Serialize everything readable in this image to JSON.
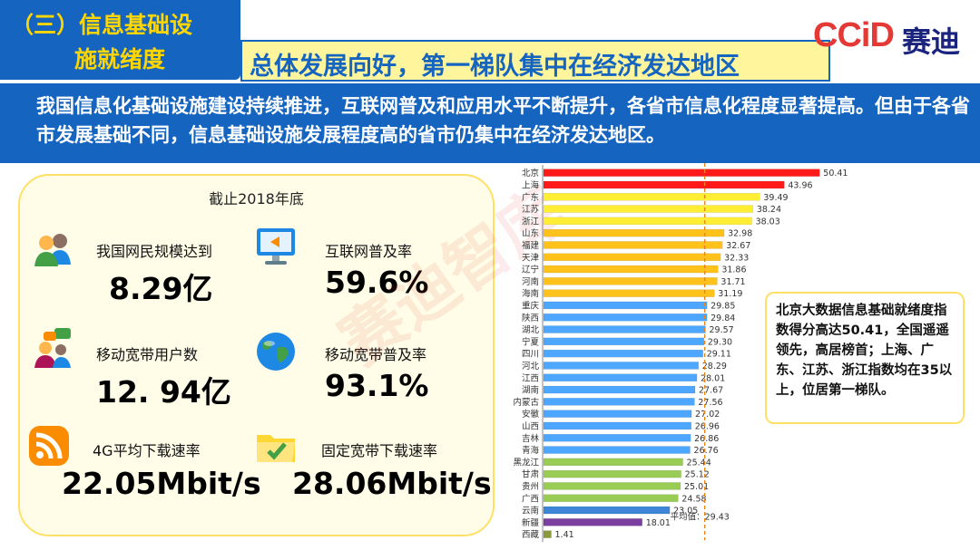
{
  "header": {
    "section_line1": "（三）信息基础设",
    "section_line2": "施就绪度",
    "headline": "总体发展向好，第一梯队集中在经济发达地区",
    "logo_latin": "CCiD",
    "logo_cn": "赛迪"
  },
  "intro": "我国信息化基础设施建设持续推进，互联网普及和应用水平不断提升，各省市信息化程度显著提高。但由于各省市发展基础不同，信息基础设施发展程度高的省市仍集中在经济发达地区。",
  "stats": {
    "title": "截止2018年底",
    "items": [
      {
        "label": "我国网民规模达到",
        "value": "8.29亿",
        "icon": "users-icon"
      },
      {
        "label": "互联网普及率",
        "value": "59.6%",
        "icon": "monitor-icon"
      },
      {
        "label": "移动宽带用户数",
        "value": "12. 94亿",
        "icon": "chat-users-icon"
      },
      {
        "label": "移动宽带普及率",
        "value": "93.1%",
        "icon": "globe-icon"
      },
      {
        "label": "4G平均下载速率",
        "value": "22.05Mbit/s",
        "icon": "rss-icon"
      },
      {
        "label": "固定宽带下载速率",
        "value": "28.06Mbit/s",
        "icon": "folder-check-icon"
      }
    ]
  },
  "callout": "北京大数据信息基础就绪度指数得分高达50.41，全国遥遥领先，高居榜首；上海、广东、江苏、浙江指数均在35以上，位居第一梯队。",
  "watermark": "赛迪智库",
  "chart_data": {
    "type": "bar",
    "orientation": "horizontal",
    "categories": [
      "北京",
      "上海",
      "广东",
      "江苏",
      "浙江",
      "山东",
      "福建",
      "天津",
      "辽宁",
      "河南",
      "海南",
      "重庆",
      "陕西",
      "湖北",
      "宁夏",
      "四川",
      "河北",
      "江西",
      "湖南",
      "内蒙古",
      "安徽",
      "山西",
      "吉林",
      "青海",
      "黑龙江",
      "甘肃",
      "贵州",
      "广西",
      "云南",
      "新疆",
      "西藏"
    ],
    "values": [
      50.41,
      43.96,
      39.49,
      38.24,
      38.03,
      32.98,
      32.67,
      32.33,
      31.86,
      31.71,
      31.19,
      29.85,
      29.84,
      29.57,
      29.3,
      29.11,
      28.29,
      28.01,
      27.67,
      27.56,
      27.02,
      26.96,
      26.86,
      26.76,
      25.44,
      25.12,
      25.01,
      24.58,
      23.05,
      18.01,
      1.41
    ],
    "value_labels": [
      "50.41",
      "43.96",
      "39.49",
      "38.24",
      "38.03",
      "32.98",
      "32.67",
      "32.33",
      "31.86",
      "31.71",
      "31.19",
      "29.85",
      "29.84",
      "29.57",
      "29.30",
      "29.11",
      "28.29",
      "28.01",
      "27.67",
      "27.56",
      "27.02",
      "26.96",
      "26.86",
      "26.76",
      "25.44",
      "25.12",
      "25.01",
      "24.58",
      "23.05",
      "18.01",
      "1.41"
    ],
    "xlim": [
      0,
      55
    ],
    "average": 29.43,
    "average_label": "平均值：29.43",
    "colors": {
      "tier1": "#ff1a1a",
      "tier2": "#ffee33",
      "tier3": "#ffc21a",
      "tier4": "#4da6ff",
      "tier5": "#99cc55",
      "tier6": "#3d85d6",
      "tier7": "#7b3fa0",
      "tier8": "#8a9a3a",
      "average_line": "#e6861a"
    },
    "color_index": [
      "tier1",
      "tier1",
      "tier2",
      "tier2",
      "tier2",
      "tier3",
      "tier3",
      "tier3",
      "tier3",
      "tier3",
      "tier3",
      "tier4",
      "tier4",
      "tier4",
      "tier4",
      "tier4",
      "tier4",
      "tier4",
      "tier4",
      "tier4",
      "tier4",
      "tier4",
      "tier4",
      "tier4",
      "tier5",
      "tier5",
      "tier5",
      "tier5",
      "tier6",
      "tier7",
      "tier8"
    ],
    "title": "",
    "xlabel": "",
    "ylabel": ""
  }
}
